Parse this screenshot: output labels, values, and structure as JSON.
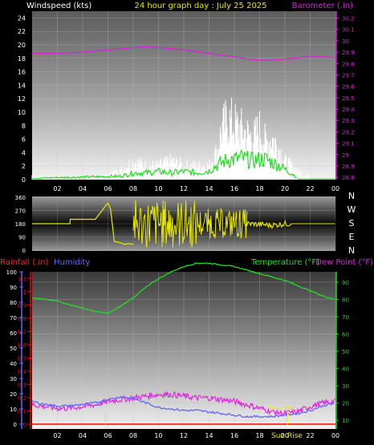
{
  "header": {
    "left_title": "Windspeed (kts)",
    "center_title": "24 hour graph day : July 25 2025",
    "right_title": "Barometer (.in)"
  },
  "panel3_titles": {
    "rainfall": "Rainfall (.in)",
    "humidity": "Humidity",
    "temperature": "Temperature (°F)",
    "dewpoint": "Dew Point (°F)"
  },
  "annotations": {
    "sun_set": "Sun Set",
    "sun_rise": "Sun Rise"
  },
  "colors": {
    "windspeed": "#ffffff",
    "gust": "#ffffff",
    "avg_wind": "#22dd22",
    "barometer": "#dd22dd",
    "direction": "#e8e800",
    "temperature": "#22dd22",
    "dewpoint": "#dd22dd",
    "humidity": "#6666ff",
    "rainfall": "#ff0000",
    "sun_marker": "#e8e800"
  },
  "chart_data": [
    {
      "type": "line",
      "name": "wind-barometer",
      "x_ticks": [
        "02",
        "04",
        "06",
        "08",
        "10",
        "12",
        "14",
        "16",
        "18",
        "20",
        "22",
        "00"
      ],
      "y_left": {
        "ticks": [
          "0",
          "2",
          "4",
          "6",
          "8",
          "10",
          "12",
          "14",
          "16",
          "18",
          "20",
          "22",
          "24"
        ],
        "ylim": [
          0,
          25
        ]
      },
      "y_right": {
        "ticks": [
          "28.8",
          "28.9",
          "29",
          "29.1",
          "29.2",
          "29.3",
          "29.4",
          "29.5",
          "29.6",
          "29.7",
          "29.8",
          "29.9",
          "30",
          "30.1",
          "30.2"
        ],
        "ylim": [
          28.78,
          30.26
        ]
      },
      "series": {
        "barometer": {
          "x": [
            0,
            2,
            4,
            6,
            8,
            9,
            10,
            12,
            14,
            16,
            17,
            18,
            19,
            20,
            21,
            22,
            23,
            24
          ],
          "values": [
            29.89,
            29.89,
            29.9,
            29.92,
            29.94,
            29.95,
            29.94,
            29.92,
            29.89,
            29.86,
            29.84,
            29.83,
            29.83,
            29.84,
            29.85,
            29.86,
            29.86,
            29.85
          ]
        },
        "wind_peak": {
          "x": [
            0,
            4,
            6,
            7,
            8,
            9,
            10,
            11,
            12,
            13,
            14,
            14.6,
            15,
            15.5,
            16,
            16.5,
            17,
            17.5,
            18,
            18.5,
            19,
            19.5,
            20,
            20.5,
            21,
            21.5
          ],
          "values": [
            1,
            0,
            1,
            2,
            4,
            3,
            3,
            4,
            3,
            3,
            3,
            6,
            11,
            13,
            12,
            11,
            10,
            9,
            11,
            8,
            9,
            7,
            4,
            3,
            2,
            1
          ]
        },
        "avg_wind": {
          "x": [
            0,
            7,
            8,
            9,
            10,
            11,
            12,
            13,
            14,
            14.5,
            15,
            15.5,
            16,
            16.5,
            17,
            17.5,
            18,
            18.5,
            19,
            19.5,
            20,
            20.5,
            21
          ],
          "values": [
            0.2,
            0.5,
            1,
            1,
            1.2,
            1,
            1.2,
            1,
            1.3,
            2,
            2.5,
            3,
            3,
            3.2,
            3,
            2.8,
            3,
            3,
            2.5,
            2.2,
            1.5,
            1,
            0.2
          ]
        }
      }
    },
    {
      "type": "line",
      "name": "wind-direction",
      "y_ticks": [
        "0",
        "90",
        "180",
        "270",
        "360"
      ],
      "ylim": [
        0,
        360
      ],
      "compass": [
        "N",
        "W",
        "S",
        "E",
        "N"
      ],
      "series": {
        "direction": {
          "x": [
            0,
            3,
            3.01,
            5,
            5.8,
            6,
            6.2,
            6.5,
            7,
            7.3,
            7.6,
            8
          ],
          "values": [
            180,
            180,
            210,
            210,
            300,
            320,
            280,
            60,
            50,
            40,
            45,
            40
          ]
        },
        "direction_late": {
          "x": [
            17,
            18,
            19,
            20,
            21,
            24
          ],
          "values": [
            180,
            175,
            170,
            180,
            180,
            180
          ]
        }
      }
    },
    {
      "type": "line",
      "name": "temp-humidity-rain",
      "x_ticks": [
        "02",
        "04",
        "06",
        "08",
        "10",
        "12",
        "14",
        "16",
        "18",
        "20",
        "22",
        "00"
      ],
      "y_left_rain": {
        "ticks": [
          "0",
          "0.1",
          "0.2",
          "0.3",
          "0.4",
          "0.5",
          "0.6",
          "0.7",
          "0.8",
          "0.9",
          "1",
          "1.1"
        ],
        "ylim": [
          0,
          1.15
        ]
      },
      "y_left_humidity": {
        "ticks": [
          "0",
          "10",
          "20",
          "30",
          "40",
          "50",
          "60",
          "70",
          "80",
          "90",
          "100"
        ],
        "ylim": [
          0,
          100
        ]
      },
      "y_right_temp": {
        "ticks": [
          "10",
          "20",
          "30",
          "40",
          "50",
          "60",
          "70",
          "80",
          "90"
        ],
        "ylim": [
          5,
          96
        ]
      },
      "series": {
        "temperature": {
          "x": [
            0,
            1,
            2,
            3,
            4,
            5,
            6,
            7,
            8,
            9,
            10,
            11,
            12,
            13,
            14,
            15,
            16,
            17,
            18,
            19,
            20,
            21,
            22,
            23,
            24
          ],
          "values": [
            81,
            80,
            79,
            77,
            75,
            73,
            72,
            76,
            81,
            87,
            92,
            96,
            99,
            101,
            101,
            100,
            99,
            97,
            95,
            93,
            91,
            88,
            85,
            82,
            80
          ]
        },
        "dewpoint": {
          "x": [
            0,
            1,
            2,
            3,
            4,
            5,
            6,
            7,
            8,
            9,
            10,
            11,
            12,
            13,
            14,
            15,
            16,
            17,
            18,
            19,
            20,
            21,
            22,
            23,
            24
          ],
          "values": [
            19,
            18,
            17,
            17,
            18,
            19,
            21,
            22,
            23,
            24,
            25,
            25,
            24,
            23,
            23,
            22,
            21,
            19,
            17,
            15,
            14,
            15,
            18,
            20,
            21
          ]
        },
        "humidity": {
          "x": [
            0,
            1,
            2,
            3,
            4,
            5,
            6,
            7,
            8,
            9,
            10,
            11,
            12,
            13,
            14,
            15,
            16,
            17,
            18,
            19,
            20,
            21,
            22,
            23,
            24
          ],
          "values": [
            15,
            13,
            12,
            12,
            13,
            14,
            16,
            18,
            17,
            14,
            11,
            10,
            9,
            9,
            8,
            7,
            6,
            5,
            5,
            5,
            6,
            7,
            9,
            12,
            14
          ]
        },
        "rainfall": {
          "x": [
            0,
            24
          ],
          "values": [
            0,
            0
          ]
        }
      }
    }
  ]
}
